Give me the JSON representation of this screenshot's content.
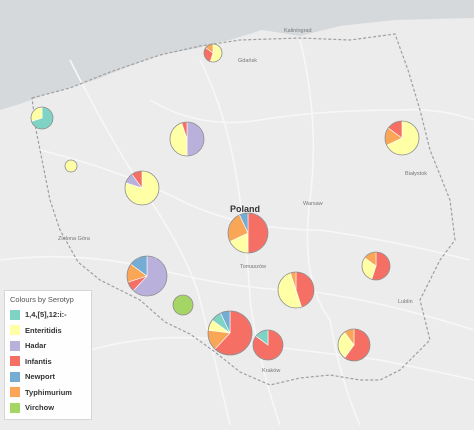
{
  "map": {
    "country_label": "Poland",
    "place_labels": [
      "Warsaw",
      "Lublin",
      "Białystok",
      "Zielona Góra",
      "Tomaszów",
      "Gdańsk",
      "Kaliningrad",
      "Kraków"
    ]
  },
  "colors": {
    "land": "#ececec",
    "sea": "#d6d9dc",
    "border": "#9f9f9f",
    "road": "#f7f7f7",
    "pie_stroke": "#8a8a8a"
  },
  "legend": {
    "title": "Colours by Serotyp",
    "items": [
      {
        "label": "1,4,[5],12:i:-",
        "color": "#7fd3c4"
      },
      {
        "label": "Enteritidis",
        "color": "#ffffa6"
      },
      {
        "label": "Hadar",
        "color": "#b9b1dc"
      },
      {
        "label": "Infantis",
        "color": "#f56f65"
      },
      {
        "label": "Newport",
        "color": "#74acd4"
      },
      {
        "label": "Typhimurium",
        "color": "#f9a657"
      },
      {
        "label": "Virchow",
        "color": "#a5d564"
      }
    ]
  },
  "pies": [
    {
      "name": "gdansk-region",
      "slices": [
        {
          "serotype": "Enteritidis",
          "share": 0.55
        },
        {
          "serotype": "Infantis",
          "share": 0.3
        },
        {
          "serotype": "Typhimurium",
          "share": 0.15
        }
      ]
    },
    {
      "name": "szczecin-region",
      "slices": [
        {
          "serotype": "1,4,[5],12:i:-",
          "share": 0.7
        },
        {
          "serotype": "Enteritidis",
          "share": 0.3
        }
      ]
    },
    {
      "name": "west-small",
      "slices": [
        {
          "serotype": "Enteritidis",
          "share": 1.0
        }
      ]
    },
    {
      "name": "bydgoszcz-region",
      "slices": [
        {
          "serotype": "Hadar",
          "share": 0.5
        },
        {
          "serotype": "Enteritidis",
          "share": 0.45
        },
        {
          "serotype": "Infantis",
          "share": 0.05
        }
      ]
    },
    {
      "name": "poznan-region",
      "slices": [
        {
          "serotype": "Enteritidis",
          "share": 0.8
        },
        {
          "serotype": "Hadar",
          "share": 0.1
        },
        {
          "serotype": "Infantis",
          "share": 0.1
        }
      ]
    },
    {
      "name": "bialystok-region",
      "slices": [
        {
          "serotype": "Enteritidis",
          "share": 0.68
        },
        {
          "serotype": "Typhimurium",
          "share": 0.17
        },
        {
          "serotype": "Infantis",
          "share": 0.15
        }
      ]
    },
    {
      "name": "lodz-region",
      "slices": [
        {
          "serotype": "Infantis",
          "share": 0.5
        },
        {
          "serotype": "Enteritidis",
          "share": 0.18
        },
        {
          "serotype": "Typhimurium",
          "share": 0.25
        },
        {
          "serotype": "Newport",
          "share": 0.07
        }
      ]
    },
    {
      "name": "wroclaw-region",
      "slices": [
        {
          "serotype": "Hadar",
          "share": 0.62
        },
        {
          "serotype": "Infantis",
          "share": 0.08
        },
        {
          "serotype": "Typhimurium",
          "share": 0.15
        },
        {
          "serotype": "Newport",
          "share": 0.15
        }
      ]
    },
    {
      "name": "opole-region",
      "slices": [
        {
          "serotype": "Virchow",
          "share": 1.0
        }
      ]
    },
    {
      "name": "kielce-region",
      "slices": [
        {
          "serotype": "Infantis",
          "share": 0.45
        },
        {
          "serotype": "Enteritidis",
          "share": 0.5
        },
        {
          "serotype": "Typhimurium",
          "share": 0.05
        }
      ]
    },
    {
      "name": "lublin-region",
      "slices": [
        {
          "serotype": "Infantis",
          "share": 0.55
        },
        {
          "serotype": "Enteritidis",
          "share": 0.3
        },
        {
          "serotype": "Typhimurium",
          "share": 0.15
        }
      ]
    },
    {
      "name": "katowice-region",
      "slices": [
        {
          "serotype": "Infantis",
          "share": 0.62
        },
        {
          "serotype": "Typhimurium",
          "share": 0.15
        },
        {
          "serotype": "Enteritidis",
          "share": 0.08
        },
        {
          "serotype": "1,4,[5],12:i:-",
          "share": 0.08
        },
        {
          "serotype": "Newport",
          "share": 0.07
        }
      ]
    },
    {
      "name": "krakow-region",
      "slices": [
        {
          "serotype": "Infantis",
          "share": 0.85
        },
        {
          "serotype": "1,4,[5],12:i:-",
          "share": 0.15
        }
      ]
    },
    {
      "name": "rzeszow-region",
      "slices": [
        {
          "serotype": "Infantis",
          "share": 0.6
        },
        {
          "serotype": "Enteritidis",
          "share": 0.3
        },
        {
          "serotype": "Typhimurium",
          "share": 0.1
        }
      ]
    }
  ]
}
